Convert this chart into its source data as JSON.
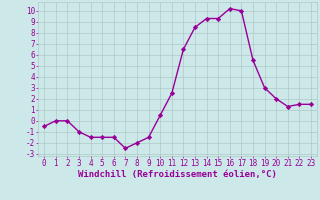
{
  "x": [
    0,
    1,
    2,
    3,
    4,
    5,
    6,
    7,
    8,
    9,
    10,
    11,
    12,
    13,
    14,
    15,
    16,
    17,
    18,
    19,
    20,
    21,
    22,
    23
  ],
  "y": [
    -0.5,
    0.0,
    0.0,
    -1.0,
    -1.5,
    -1.5,
    -1.5,
    -2.5,
    -2.0,
    -1.5,
    0.5,
    2.5,
    6.5,
    8.5,
    9.3,
    9.3,
    10.2,
    10.0,
    5.5,
    3.0,
    2.0,
    1.3,
    1.5,
    1.5
  ],
  "line_color": "#990099",
  "marker": "D",
  "markersize": 2.2,
  "linewidth": 1.0,
  "bg_color": "#cce8e8",
  "grid_color": "#b0c8c8",
  "xlabel": "Windchill (Refroidissement éolien,°C)",
  "xlabel_color": "#990099",
  "xlabel_fontsize": 6.5,
  "tick_color": "#990099",
  "tick_fontsize": 5.5,
  "ylim": [
    -3.2,
    10.8
  ],
  "xlim": [
    -0.5,
    23.5
  ],
  "yticks": [
    -3,
    -2,
    -1,
    0,
    1,
    2,
    3,
    4,
    5,
    6,
    7,
    8,
    9,
    10
  ],
  "xticks": [
    0,
    1,
    2,
    3,
    4,
    5,
    6,
    7,
    8,
    9,
    10,
    11,
    12,
    13,
    14,
    15,
    16,
    17,
    18,
    19,
    20,
    21,
    22,
    23
  ]
}
